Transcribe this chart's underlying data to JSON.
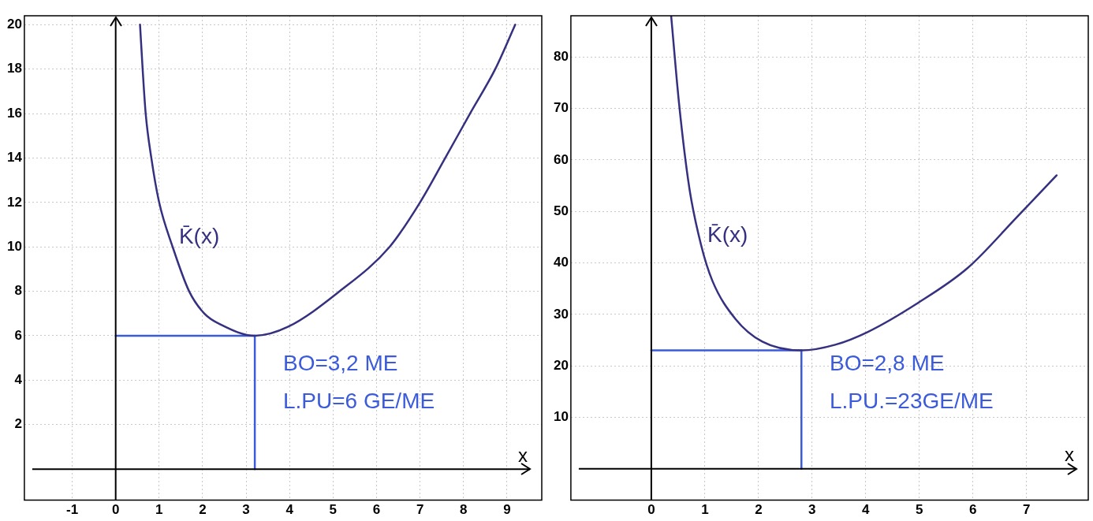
{
  "chart_data": [
    {
      "type": "line",
      "xlabel": "x",
      "xlim": [
        -2.1,
        9.8
      ],
      "ylim": [
        -1.4,
        20.4
      ],
      "xticks": [
        -1,
        0,
        1,
        2,
        3,
        4,
        5,
        6,
        7,
        8,
        9
      ],
      "yticks": [
        2,
        4,
        6,
        8,
        10,
        12,
        14,
        16,
        18,
        20
      ],
      "grid": true,
      "legend": false,
      "series": [
        {
          "name": "K̄(x)",
          "color": "#35307f",
          "x": [
            0.56,
            0.62,
            0.69,
            0.82,
            1.0,
            1.31,
            1.69,
            2.04,
            2.42,
            3.2,
            3.96,
            5.15,
            6.3,
            7.0,
            7.58,
            8.15,
            8.73,
            9.19
          ],
          "values": [
            20,
            18,
            16,
            14,
            12,
            10,
            8,
            7,
            6.5,
            6,
            6.4,
            8,
            10,
            12,
            14,
            16,
            18,
            20
          ]
        },
        {
          "color": "#3b5bdb",
          "x": [
            0,
            3.2
          ],
          "values": [
            6,
            6
          ]
        },
        {
          "color": "#3b5bdb",
          "x": [
            3.2,
            3.2
          ],
          "values": [
            6,
            0
          ]
        }
      ],
      "annotations": [
        "BO=3,2 ME",
        "L.PU=6 GE/ME"
      ]
    },
    {
      "type": "line",
      "xlabel": "x",
      "xlim": [
        -1.5,
        8.15
      ],
      "ylim": [
        -6.1,
        88
      ],
      "xticks": [
        0,
        1,
        2,
        3,
        4,
        5,
        6,
        7
      ],
      "yticks": [
        10,
        20,
        30,
        40,
        50,
        60,
        70,
        80
      ],
      "grid": true,
      "legend": false,
      "series": [
        {
          "name": "K̄(x)",
          "color": "#35307f",
          "x": [
            0.37,
            0.52,
            0.71,
            0.93,
            1.14,
            1.57,
            2.07,
            2.8,
            3.43,
            4.04,
            4.97,
            5.9,
            6.82,
            7.56
          ],
          "values": [
            88,
            70.7,
            54.5,
            43.4,
            36.5,
            29.1,
            24.7,
            23,
            24.1,
            26.6,
            32.2,
            39,
            48.9,
            57
          ]
        },
        {
          "color": "#3b5bdb",
          "x": [
            0,
            2.8
          ],
          "values": [
            23,
            23
          ]
        },
        {
          "color": "#3b5bdb",
          "x": [
            2.8,
            2.8
          ],
          "values": [
            23,
            0
          ]
        }
      ],
      "annotations": [
        "BO=2,8 ME",
        "L.PU.=23GE/ME"
      ]
    }
  ]
}
